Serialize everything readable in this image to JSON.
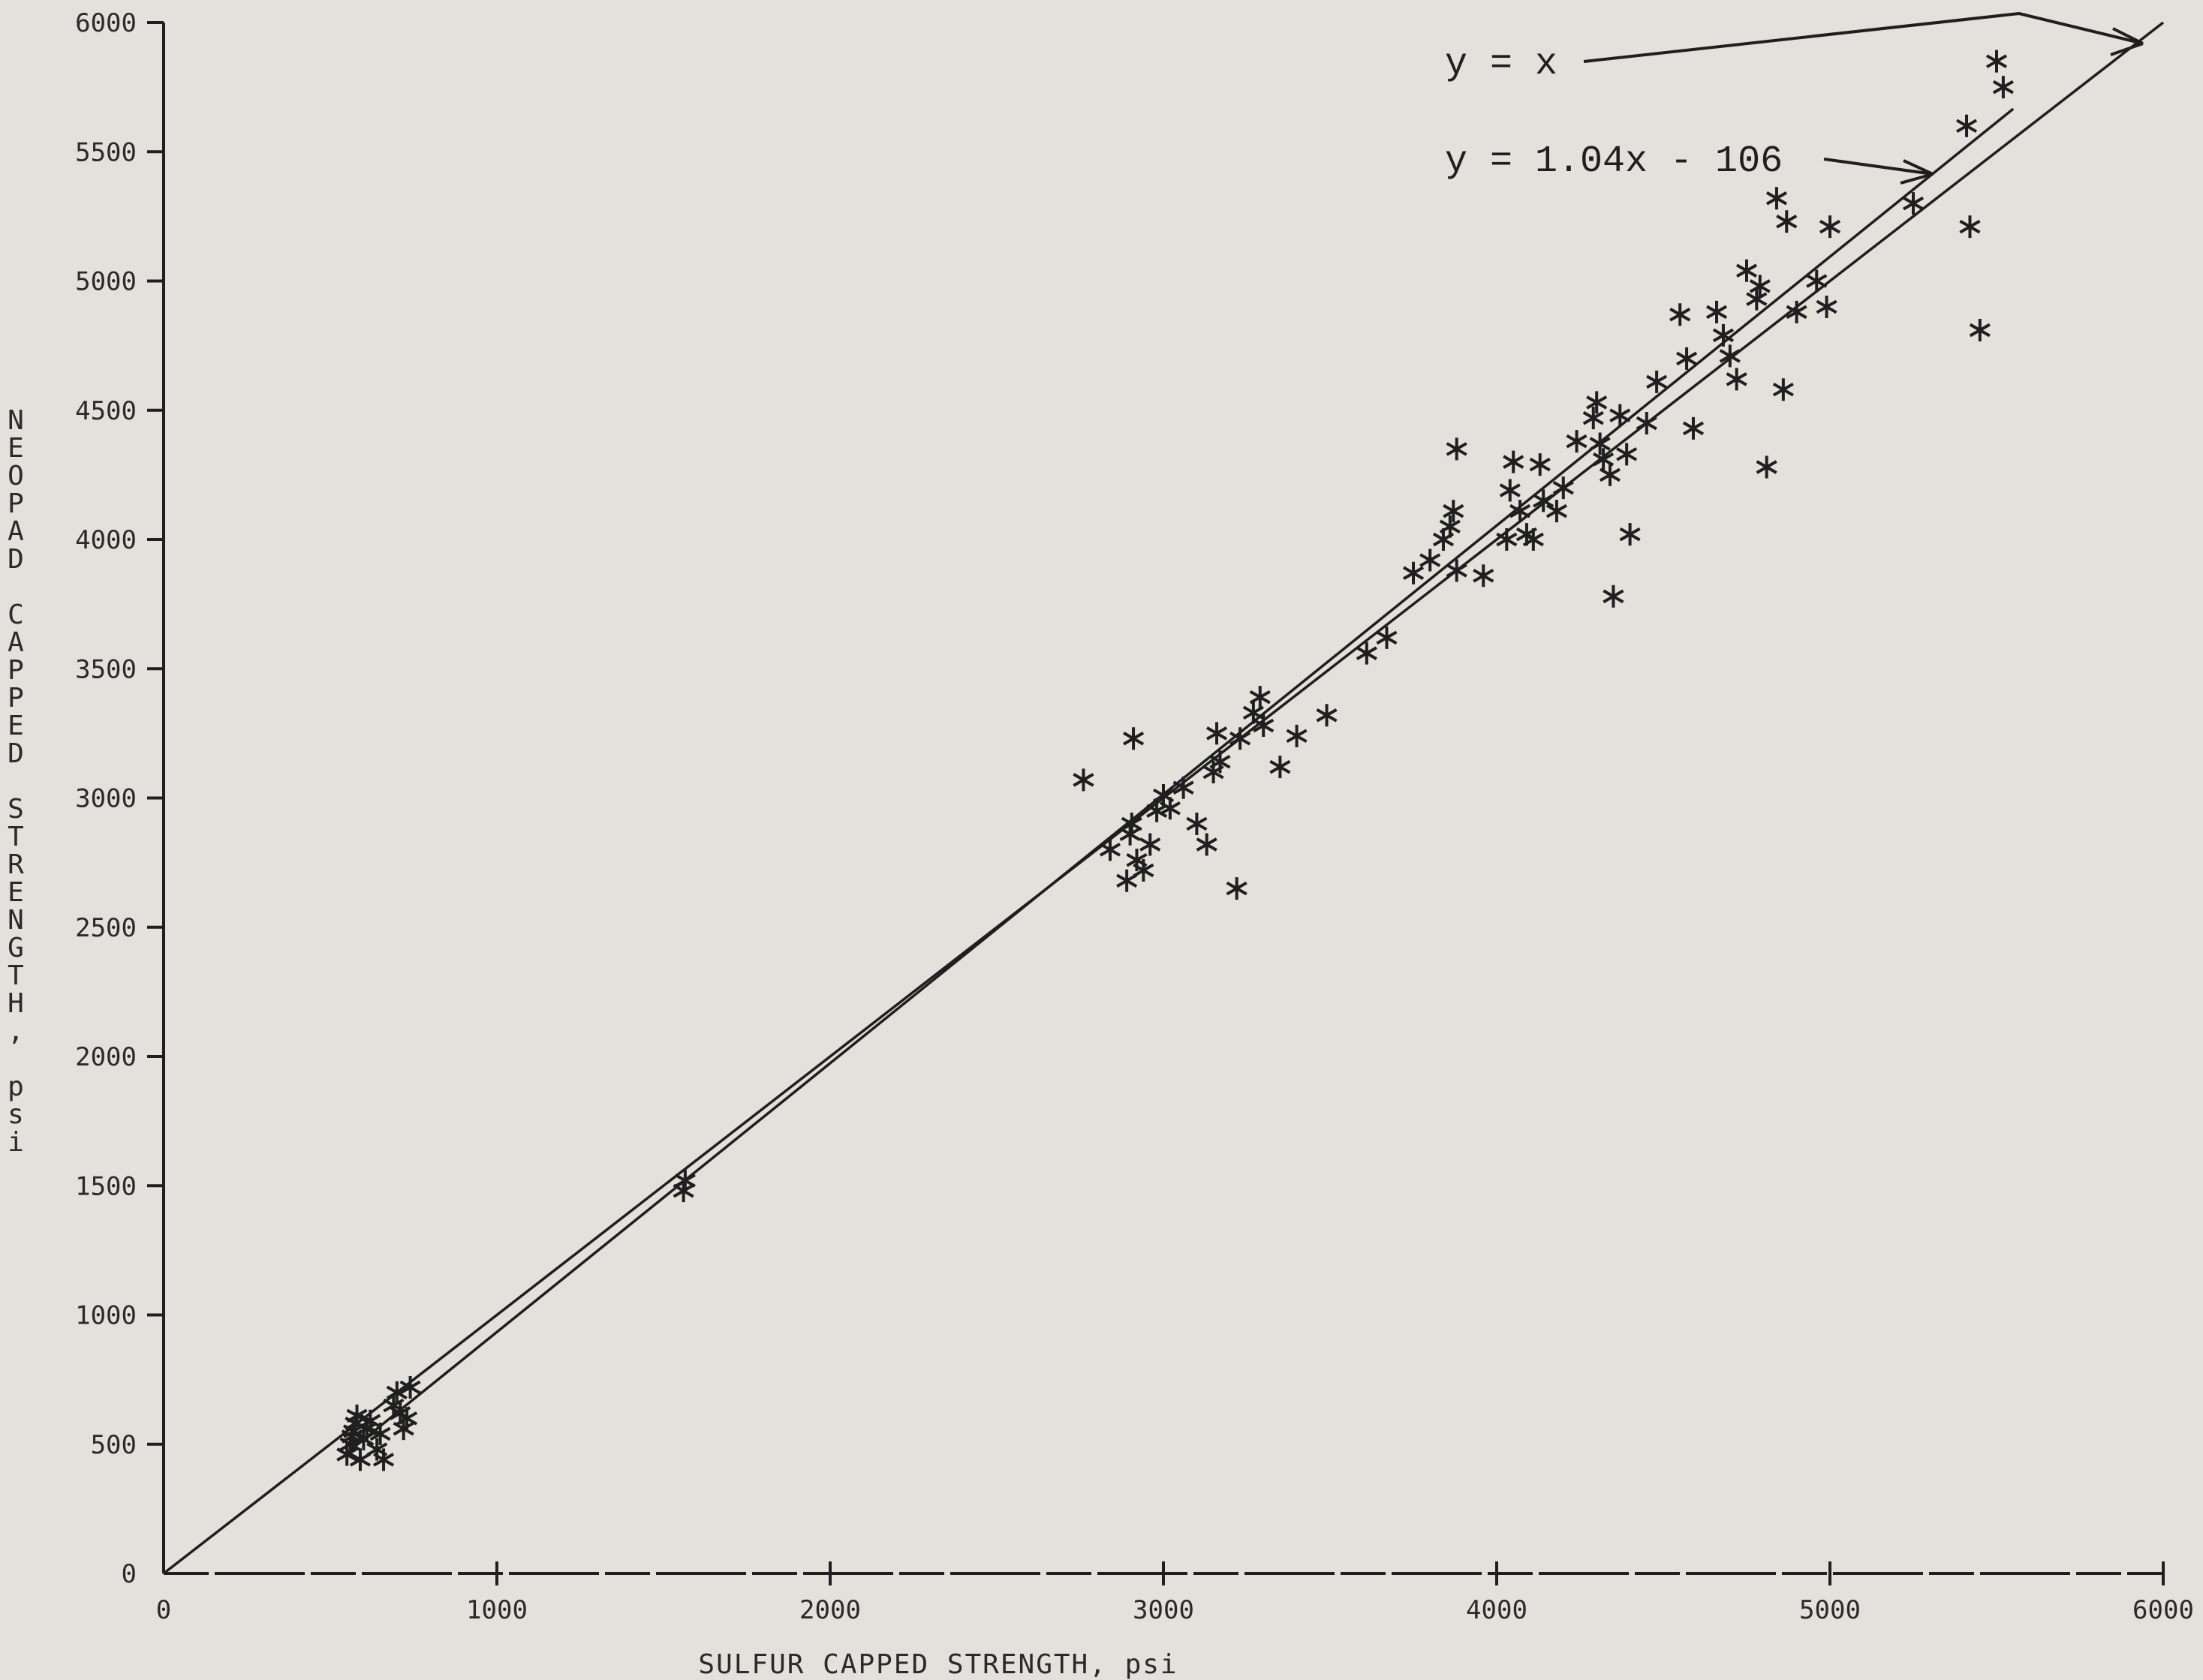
{
  "chart_data": {
    "type": "scatter",
    "xlabel": "SULFUR CAPPED STRENGTH, psi",
    "ylabel": "NEOPAD CAPPED STRENGTH, psi",
    "xlim": [
      0,
      6000
    ],
    "ylim": [
      0,
      6000
    ],
    "x_ticks": [
      0,
      1000,
      2000,
      3000,
      4000,
      5000,
      6000
    ],
    "y_ticks": [
      0,
      500,
      1000,
      1500,
      2000,
      2500,
      3000,
      3500,
      4000,
      4500,
      5000,
      5500,
      6000
    ],
    "x_tick_labels": [
      "0",
      "1000",
      "2000",
      "3000",
      "4000",
      "5000",
      "6000"
    ],
    "y_tick_labels": [
      "0",
      "500",
      "1000",
      "1500",
      "2000",
      "2500",
      "3000",
      "3500",
      "4000",
      "4500",
      "5000",
      "5500",
      "6000"
    ],
    "grid": false,
    "lines": [
      {
        "label": "y = x",
        "slope": 1.0,
        "intercept": 0,
        "x_range": [
          0,
          6000
        ]
      },
      {
        "label": "y = 1.04x - 106",
        "slope": 1.04,
        "intercept": -106,
        "x_range": [
          550,
          5550
        ]
      }
    ],
    "points": [
      [
        550,
        460
      ],
      [
        560,
        500
      ],
      [
        565,
        530
      ],
      [
        570,
        550
      ],
      [
        575,
        580
      ],
      [
        580,
        610
      ],
      [
        590,
        440
      ],
      [
        600,
        520
      ],
      [
        610,
        560
      ],
      [
        620,
        590
      ],
      [
        640,
        480
      ],
      [
        650,
        540
      ],
      [
        660,
        440
      ],
      [
        690,
        650
      ],
      [
        700,
        700
      ],
      [
        710,
        620
      ],
      [
        720,
        560
      ],
      [
        730,
        600
      ],
      [
        740,
        720
      ],
      [
        1560,
        1480
      ],
      [
        1565,
        1520
      ],
      [
        2760,
        3070
      ],
      [
        2840,
        2800
      ],
      [
        2890,
        2680
      ],
      [
        2900,
        2860
      ],
      [
        2905,
        2900
      ],
      [
        2910,
        3230
      ],
      [
        2920,
        2760
      ],
      [
        2940,
        2720
      ],
      [
        2960,
        2820
      ],
      [
        2980,
        2950
      ],
      [
        3000,
        3010
      ],
      [
        3020,
        2960
      ],
      [
        3060,
        3040
      ],
      [
        3100,
        2900
      ],
      [
        3130,
        2820
      ],
      [
        3150,
        3100
      ],
      [
        3160,
        3250
      ],
      [
        3170,
        3140
      ],
      [
        3220,
        2650
      ],
      [
        3230,
        3230
      ],
      [
        3270,
        3330
      ],
      [
        3290,
        3390
      ],
      [
        3300,
        3280
      ],
      [
        3350,
        3120
      ],
      [
        3400,
        3240
      ],
      [
        3490,
        3320
      ],
      [
        3610,
        3560
      ],
      [
        3670,
        3620
      ],
      [
        3750,
        3870
      ],
      [
        3800,
        3920
      ],
      [
        3840,
        4000
      ],
      [
        3860,
        4050
      ],
      [
        3870,
        4110
      ],
      [
        3880,
        3880
      ],
      [
        3880,
        4350
      ],
      [
        3960,
        3860
      ],
      [
        4030,
        4000
      ],
      [
        4040,
        4190
      ],
      [
        4050,
        4300
      ],
      [
        4070,
        4110
      ],
      [
        4090,
        4020
      ],
      [
        4110,
        4000
      ],
      [
        4130,
        4290
      ],
      [
        4140,
        4150
      ],
      [
        4180,
        4110
      ],
      [
        4200,
        4200
      ],
      [
        4240,
        4380
      ],
      [
        4290,
        4470
      ],
      [
        4300,
        4530
      ],
      [
        4310,
        4370
      ],
      [
        4320,
        4310
      ],
      [
        4340,
        4250
      ],
      [
        4350,
        3780
      ],
      [
        4370,
        4480
      ],
      [
        4390,
        4330
      ],
      [
        4400,
        4020
      ],
      [
        4450,
        4450
      ],
      [
        4480,
        4610
      ],
      [
        4550,
        4870
      ],
      [
        4570,
        4700
      ],
      [
        4590,
        4430
      ],
      [
        4660,
        4880
      ],
      [
        4680,
        4790
      ],
      [
        4700,
        4710
      ],
      [
        4720,
        4620
      ],
      [
        4750,
        5040
      ],
      [
        4780,
        4930
      ],
      [
        4790,
        4980
      ],
      [
        4810,
        4280
      ],
      [
        4840,
        5320
      ],
      [
        4860,
        4580
      ],
      [
        4870,
        5230
      ],
      [
        4900,
        4880
      ],
      [
        4960,
        5000
      ],
      [
        4990,
        4900
      ],
      [
        5000,
        5210
      ],
      [
        5250,
        5300
      ],
      [
        5410,
        5600
      ],
      [
        5420,
        5210
      ],
      [
        5450,
        4810
      ],
      [
        5500,
        5850
      ],
      [
        5520,
        5750
      ]
    ]
  },
  "annotations": {
    "eq_identity": "y = x",
    "eq_fit": "y = 1.04x - 106"
  }
}
